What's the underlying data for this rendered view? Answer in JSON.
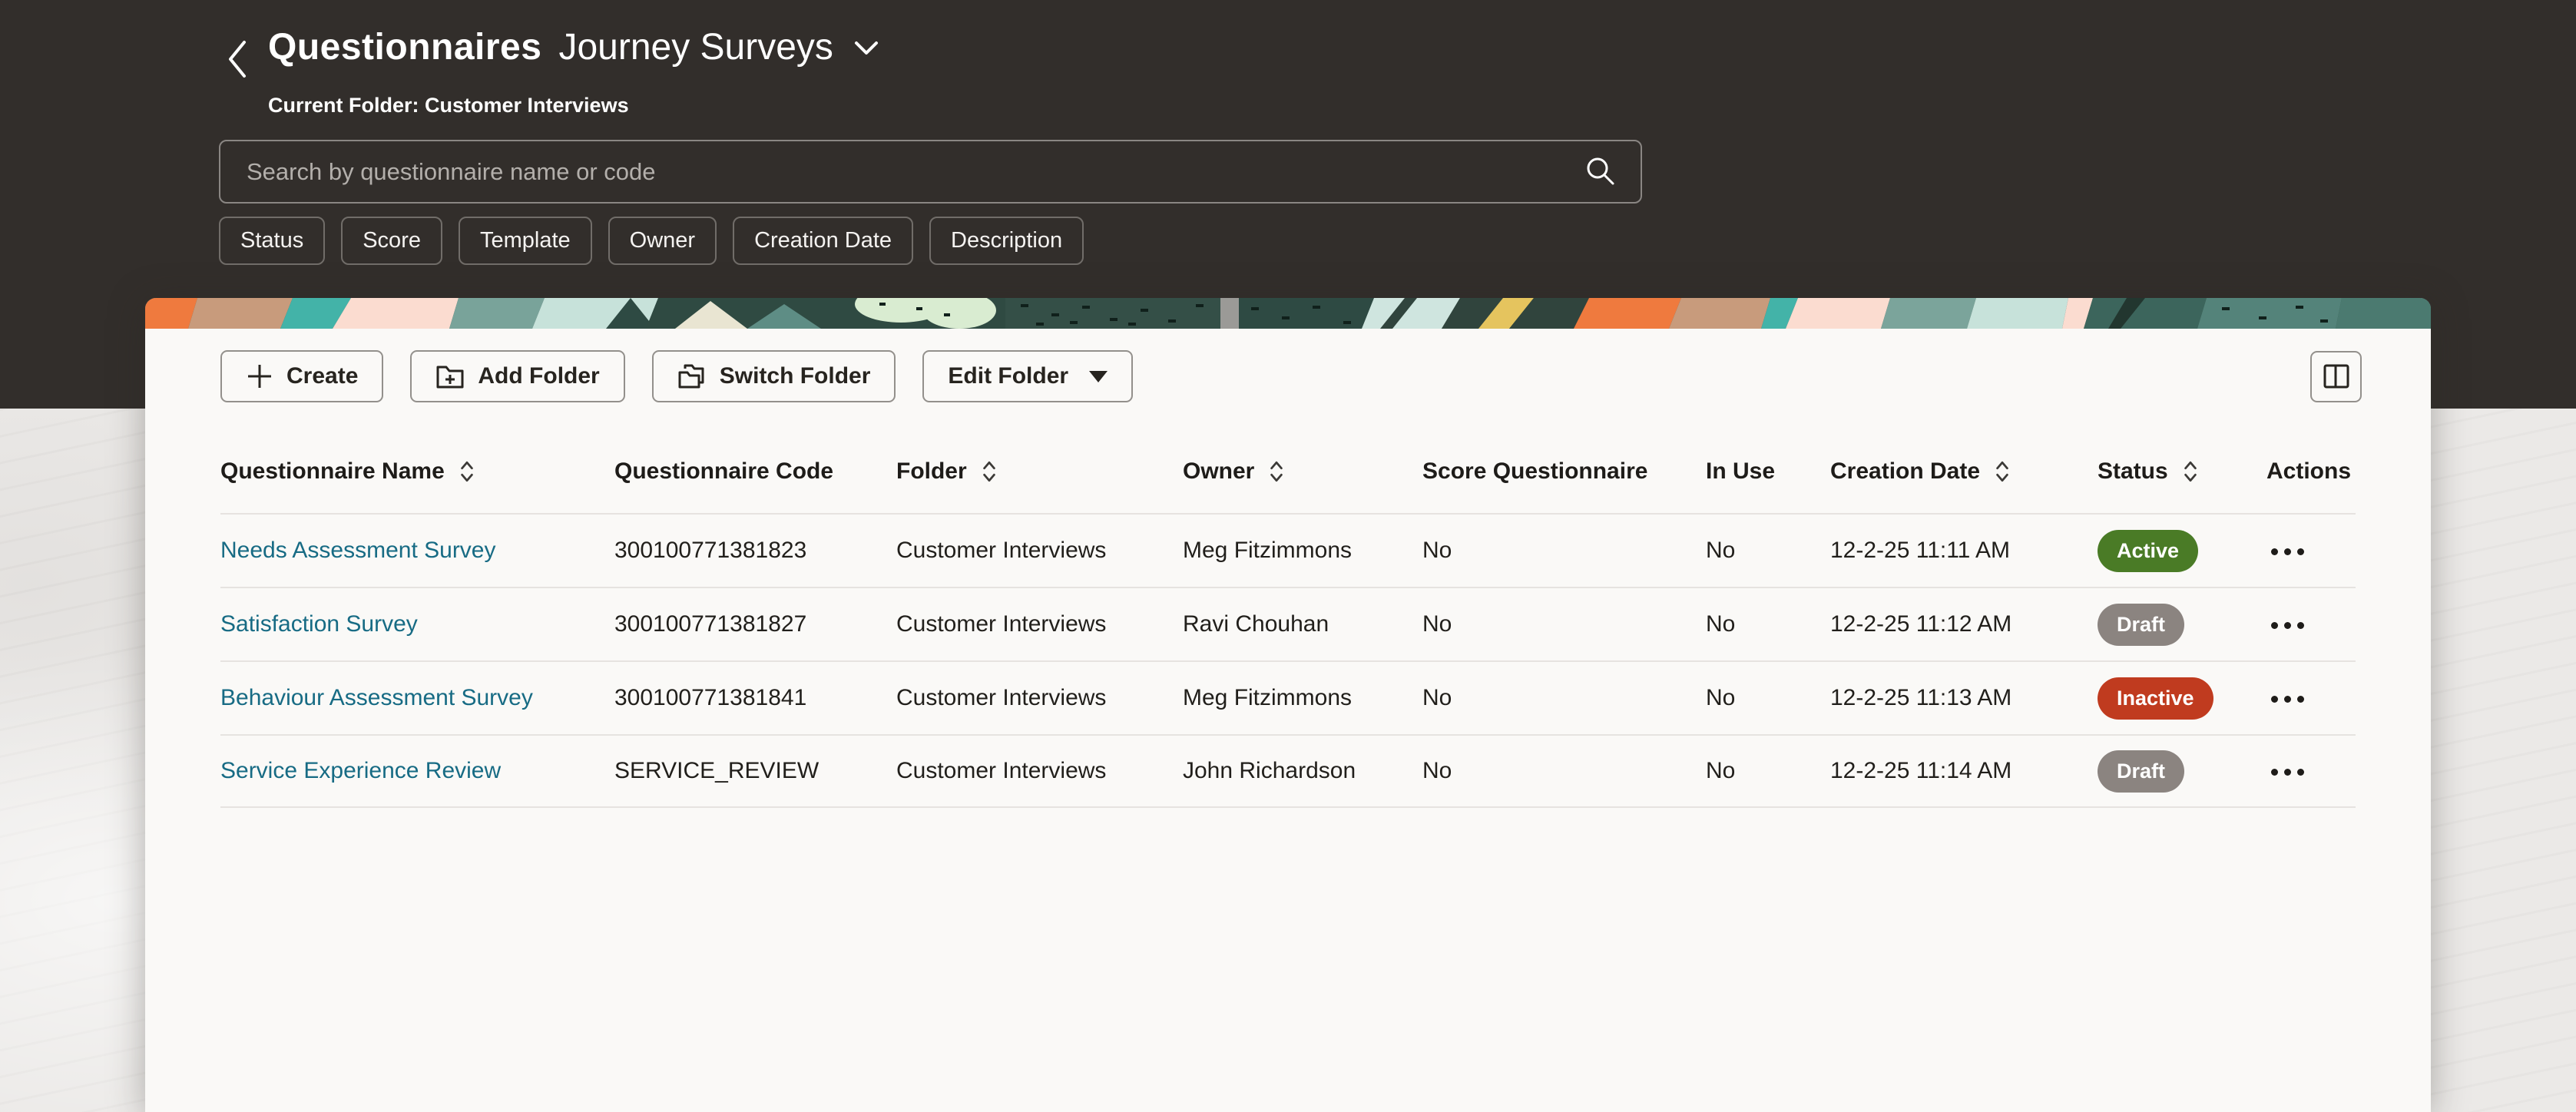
{
  "header": {
    "back_icon": "chevron-left",
    "title_bold": "Questionnaires",
    "title_regular": "Journey Surveys",
    "title_dropdown_icon": "chevron-down",
    "current_folder_label": "Current Folder: Customer Interviews",
    "search": {
      "placeholder": "Search by questionnaire name or code",
      "value": "",
      "icon": "search-icon"
    },
    "filter_chips": [
      "Status",
      "Score",
      "Template",
      "Owner",
      "Creation Date",
      "Description"
    ]
  },
  "toolbar": {
    "create_label": "Create",
    "add_folder_label": "Add Folder",
    "switch_folder_label": "Switch Folder",
    "edit_folder_label": "Edit Folder",
    "panel_toggle_icon": "split-panel-icon"
  },
  "table": {
    "columns": [
      {
        "label": "Questionnaire Name",
        "sortable": true
      },
      {
        "label": "Questionnaire Code",
        "sortable": false
      },
      {
        "label": "Folder",
        "sortable": true
      },
      {
        "label": "Owner",
        "sortable": true
      },
      {
        "label": "Score Questionnaire",
        "sortable": false
      },
      {
        "label": "In Use",
        "sortable": false
      },
      {
        "label": "Creation Date",
        "sortable": true
      },
      {
        "label": "Status",
        "sortable": true
      },
      {
        "label": "Actions",
        "sortable": false
      }
    ],
    "rows": [
      {
        "name": "Needs Assessment Survey",
        "code": "300100771381823",
        "folder": "Customer Interviews",
        "owner": "Meg Fitzimmons",
        "score": "No",
        "in_use": "No",
        "created": "12-2-25 11:11 AM",
        "status": "Active",
        "status_color": "#4a7b26"
      },
      {
        "name": "Satisfaction Survey",
        "code": "300100771381827",
        "folder": "Customer Interviews",
        "owner": "Ravi Chouhan",
        "score": "No",
        "in_use": "No",
        "created": "12-2-25 11:12 AM",
        "status": "Draft",
        "status_color": "#8b8480"
      },
      {
        "name": "Behaviour Assessment Survey",
        "code": "300100771381841",
        "folder": "Customer Interviews",
        "owner": "Meg Fitzimmons",
        "score": "No",
        "in_use": "No",
        "created": "12-2-25 11:13 AM",
        "status": "Inactive",
        "status_color": "#c03b1f"
      },
      {
        "name": "Service Experience Review",
        "code": "SERVICE_REVIEW",
        "folder": "Customer Interviews",
        "owner": "John Richardson",
        "score": "No",
        "in_use": "No",
        "created": "12-2-25 11:14 AM",
        "status": "Draft",
        "status_color": "#8b8480"
      }
    ]
  },
  "colors": {
    "header_background": "#322e2b",
    "page_background": "#ebe9e7",
    "panel_background": "#faf9f7",
    "link": "#176b84",
    "status_active": "#4a7b26",
    "status_draft": "#8b8480",
    "status_inactive": "#c03b1f"
  }
}
